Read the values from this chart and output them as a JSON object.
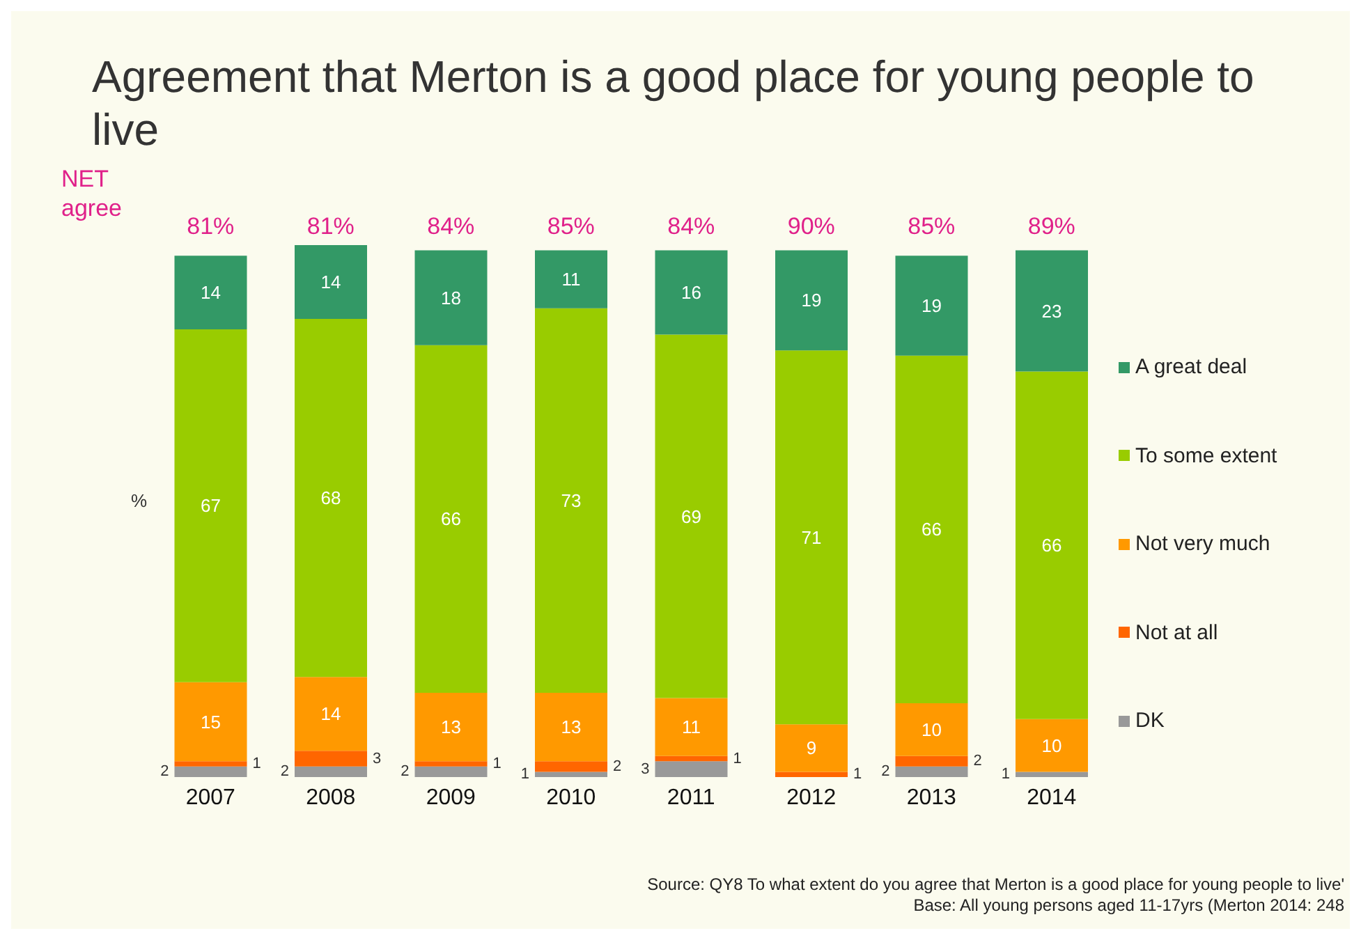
{
  "chart_data": {
    "type": "bar",
    "title": "Agreement that Merton is a good place for young people to live",
    "ylabel": "%",
    "stacked": true,
    "data_labels": true,
    "legend": "right",
    "categories": [
      "2007",
      "2008",
      "2009",
      "2010",
      "2011",
      "2012",
      "2013",
      "2014"
    ],
    "series": [
      {
        "name": "DK",
        "color": "#999999",
        "values": [
          2,
          2,
          2,
          1,
          3,
          null,
          2,
          1
        ]
      },
      {
        "name": "Not at all",
        "color": "#ff6600",
        "values": [
          1,
          3,
          1,
          2,
          1,
          1,
          2,
          null
        ]
      },
      {
        "name": "Not very much",
        "color": "#ff9900",
        "values": [
          15,
          14,
          13,
          13,
          11,
          9,
          10,
          10
        ]
      },
      {
        "name": "To some extent",
        "color": "#99cc00",
        "values": [
          67,
          68,
          66,
          73,
          69,
          71,
          66,
          66
        ]
      },
      {
        "name": "A great deal",
        "color": "#339966",
        "values": [
          14,
          14,
          18,
          11,
          16,
          19,
          19,
          23
        ]
      }
    ],
    "annotations": [
      "NET agree",
      "81%",
      "81%",
      "84%",
      "85%",
      "84%",
      "90%",
      "85%",
      "89%",
      "Source: QY8 To what extent do you agree that Merton is a good place for young people to live'",
      "Base:  All young persons aged 11-17yrs (Merton 2014: 248"
    ]
  }
}
